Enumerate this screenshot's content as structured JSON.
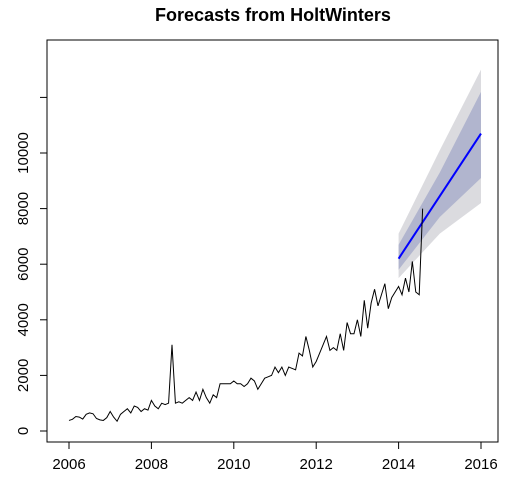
{
  "chart_data": {
    "type": "line",
    "title": "Forecasts from HoltWinters",
    "xlabel": "",
    "ylabel": "",
    "xlim": [
      2005.6,
      2016.4
    ],
    "ylim": [
      -150,
      12500
    ],
    "x_ticks": [
      2006,
      2008,
      2010,
      2012,
      2014,
      2016
    ],
    "y_ticks": [
      0,
      2000,
      4000,
      6000,
      8000,
      10000
    ],
    "y_tick_labels": [
      "0",
      "2000",
      "4000",
      "6000",
      "8000",
      "10000"
    ],
    "x_tick_labels": [
      "2006",
      "2008",
      "2010",
      "2012",
      "2014",
      "2016"
    ],
    "extra_y_ticks": [
      12000
    ],
    "legend": "none",
    "colors": {
      "observed": "#000000",
      "forecast": "#0000ff",
      "band_80": "#b1b5ce",
      "band_95": "#dbdbdf"
    },
    "observed": {
      "start": 2006.0,
      "step": 0.0833333,
      "values": [
        380,
        420,
        520,
        500,
        430,
        600,
        650,
        620,
        450,
        400,
        380,
        480,
        700,
        500,
        350,
        600,
        700,
        800,
        650,
        900,
        850,
        700,
        800,
        750,
        1100,
        900,
        800,
        1000,
        950,
        1000,
        3100,
        1000,
        1050,
        1000,
        1100,
        1200,
        1100,
        1400,
        1100,
        1500,
        1200,
        1000,
        1300,
        1200,
        1700,
        1700,
        1700,
        1700,
        1800,
        1700,
        1700,
        1600,
        1700,
        1900,
        1800,
        1500,
        1700,
        1900,
        1950,
        2000,
        2300,
        2100,
        2300,
        2000,
        2300,
        2250,
        2200,
        2800,
        2700,
        3400,
        2900,
        2300,
        2500,
        2800,
        3100,
        3400,
        2900,
        3000,
        2900,
        3500,
        2900,
        3900,
        3500,
        3500,
        4000,
        3400,
        4700,
        3700,
        4600,
        5100,
        4500,
        4900,
        5300,
        4400,
        4800,
        5000,
        5200,
        4900,
        5500,
        5000,
        6100,
        5000,
        4900,
        8000
      ]
    },
    "forecast": {
      "x": [
        2014.0,
        2015.0,
        2016.0
      ],
      "mean": [
        6200,
        8450,
        10700
      ],
      "lo80": [
        5800,
        7700,
        9100
      ],
      "hi80": [
        6700,
        9300,
        12200
      ],
      "lo95": [
        5500,
        7100,
        8200
      ],
      "hi95": [
        7100,
        10100,
        13000
      ]
    }
  }
}
